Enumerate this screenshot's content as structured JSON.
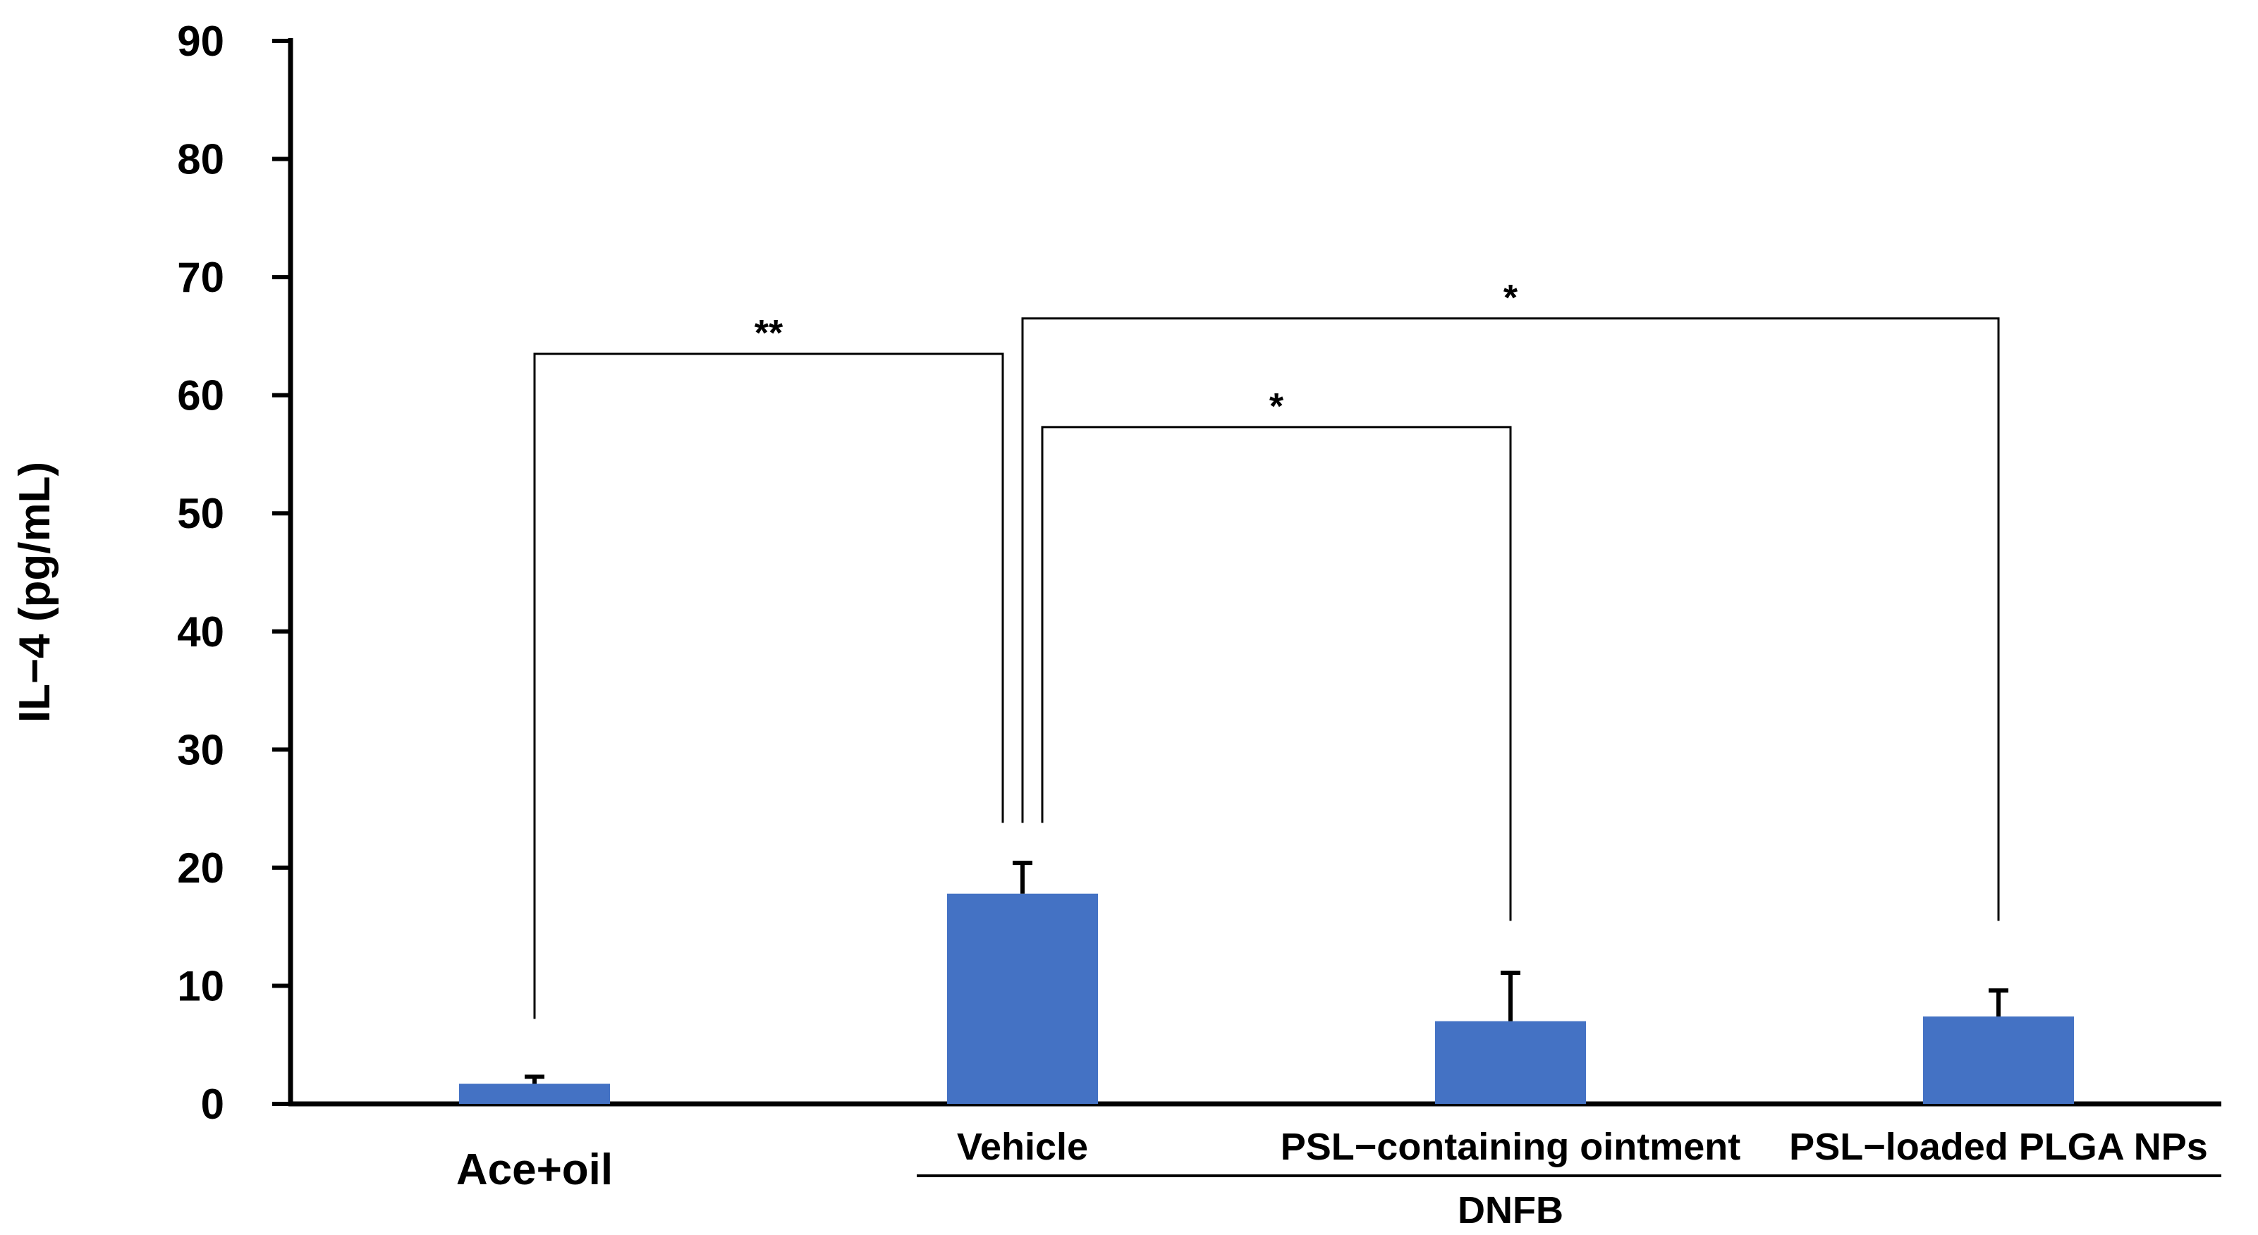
{
  "chart_data": {
    "type": "bar",
    "categories": [
      "Ace+oil",
      "Vehicle",
      "PSL−containing ointment",
      "PSL−loaded PLGA NPs"
    ],
    "values": [
      1.7,
      17.8,
      7.0,
      7.4
    ],
    "errors": [
      0.6,
      2.6,
      4.1,
      2.2
    ],
    "group_label": "DNFB",
    "group_members": [
      "Vehicle",
      "PSL−containing ointment",
      "PSL−loaded PLGA NPs"
    ],
    "ylabel": "IL−4 (pg/mL)",
    "xlabel": "",
    "ylim": [
      0,
      90
    ],
    "yticks": [
      0,
      10,
      20,
      30,
      40,
      50,
      60,
      70,
      80,
      90
    ],
    "bar_color": "#4472C4",
    "grid": false,
    "significance": [
      {
        "from": "Ace+oil",
        "to": "Vehicle",
        "label": "**",
        "bracket_y": 63.5
      },
      {
        "from": "Vehicle",
        "to": "PSL−containing ointment",
        "label": "*",
        "bracket_y": 57.3
      },
      {
        "from": "Vehicle",
        "to": "PSL−loaded PLGA NPs",
        "label": "*",
        "bracket_y": 66.5
      }
    ]
  }
}
